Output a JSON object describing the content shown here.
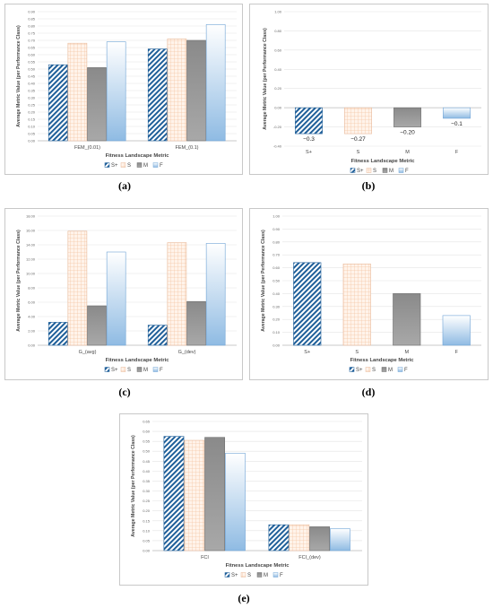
{
  "colors": {
    "splus": "#1f5f99",
    "s": "#f5c9a8",
    "m": "#909090",
    "f": "#9cc2e6"
  },
  "legend": [
    "S+",
    "S",
    "M",
    "F"
  ],
  "charts": [
    {
      "id": "a",
      "label": "(a)",
      "chart_data": {
        "type": "bar",
        "categories": [
          "FEM_(0.01)",
          "FEM_(0.1)"
        ],
        "series": [
          {
            "name": "S+",
            "values": [
              0.53,
              0.64
            ]
          },
          {
            "name": "S",
            "values": [
              0.68,
              0.71
            ]
          },
          {
            "name": "M",
            "values": [
              0.51,
              0.7
            ]
          },
          {
            "name": "F",
            "values": [
              0.69,
              0.81
            ]
          }
        ],
        "ylim": [
          0,
          0.9
        ],
        "yticks": [
          "0.00",
          "0.05",
          "0.10",
          "0.15",
          "0.20",
          "0.25",
          "0.30",
          "0.35",
          "0.40",
          "0.45",
          "0.50",
          "0.55",
          "0.60",
          "0.65",
          "0.70",
          "0.75",
          "0.80",
          "0.85",
          "0.90"
        ],
        "xlabel": "Fitness Landscape Metric",
        "ylabel": "Average Metric Value (per Performance Class)"
      }
    },
    {
      "id": "b",
      "label": "(b)",
      "chart_data": {
        "type": "bar",
        "categories": [
          "S+",
          "S",
          "M",
          "F"
        ],
        "values": [
          -0.27,
          -0.27,
          -0.2,
          -0.11
        ],
        "data_labels": [
          "−0.3",
          "−0.27",
          "−0.20",
          "−0.1"
        ],
        "ylim": [
          -0.4,
          1.0
        ],
        "yticks": [
          "-0.40",
          "-0.20",
          "0.00",
          "0.20",
          "0.40",
          "0.60",
          "0.80",
          "1.00"
        ],
        "xlabel": "Fitness Landscape Metric",
        "ylabel": "Average Metric Value (per Performance Class)"
      }
    },
    {
      "id": "c",
      "label": "(c)",
      "chart_data": {
        "type": "bar",
        "categories": [
          "G_(avg)",
          "G_(dev)"
        ],
        "series": [
          {
            "name": "S+",
            "values": [
              3.2,
              2.8
            ]
          },
          {
            "name": "S",
            "values": [
              15.9,
              14.3
            ]
          },
          {
            "name": "M",
            "values": [
              5.5,
              6.1
            ]
          },
          {
            "name": "F",
            "values": [
              13.0,
              14.2
            ]
          }
        ],
        "ylim": [
          0,
          18
        ],
        "yticks": [
          "0.00",
          "2.00",
          "4.00",
          "6.00",
          "8.00",
          "10.00",
          "12.00",
          "14.00",
          "16.00",
          "18.00"
        ],
        "xlabel": "Fitness Landscape Metric",
        "ylabel": "Average Metric Value (per Performance Class)"
      }
    },
    {
      "id": "d",
      "label": "(d)",
      "chart_data": {
        "type": "bar",
        "categories": [
          "S+",
          "S",
          "M",
          "F"
        ],
        "values": [
          0.64,
          0.63,
          0.4,
          0.23
        ],
        "ylim": [
          0,
          1.0
        ],
        "yticks": [
          "0.00",
          "0.10",
          "0.20",
          "0.30",
          "0.40",
          "0.50",
          "0.60",
          "0.70",
          "0.80",
          "0.90",
          "1.00"
        ],
        "xlabel": "Fitness Landscape Metric",
        "ylabel": "Average Metric Value (per Performance Class)"
      }
    },
    {
      "id": "e",
      "label": "(e)",
      "chart_data": {
        "type": "bar",
        "categories": [
          "FCI",
          "FCI_(dev)"
        ],
        "series": [
          {
            "name": "S+",
            "values": [
              0.575,
              0.13
            ]
          },
          {
            "name": "S",
            "values": [
              0.555,
              0.13
            ]
          },
          {
            "name": "M",
            "values": [
              0.57,
              0.12
            ]
          },
          {
            "name": "F",
            "values": [
              0.49,
              0.11
            ]
          }
        ],
        "ylim": [
          0,
          0.65
        ],
        "yticks": [
          "0.00",
          "0.05",
          "0.10",
          "0.15",
          "0.20",
          "0.25",
          "0.30",
          "0.35",
          "0.40",
          "0.45",
          "0.50",
          "0.55",
          "0.60",
          "0.65"
        ],
        "xlabel": "Fitness Landscape Metric",
        "ylabel": "Average Metric Value (per Performance Class)"
      }
    }
  ]
}
